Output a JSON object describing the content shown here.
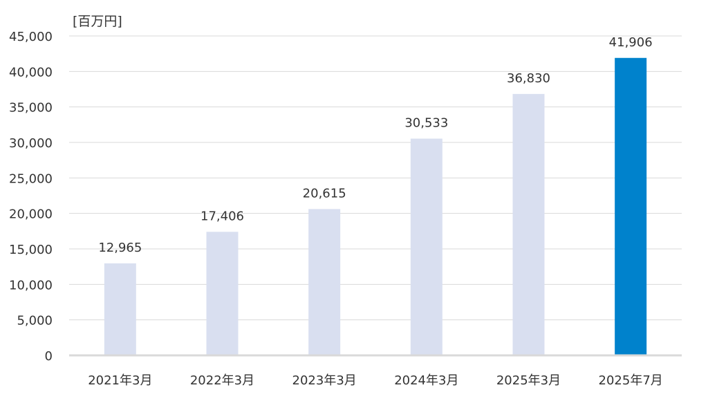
{
  "chart_data": {
    "type": "bar",
    "unit_label": "[百万円]",
    "categories": [
      "2021年3月",
      "2022年3月",
      "2023年3月",
      "2024年3月",
      "2025年3月",
      "2025年7月"
    ],
    "values": [
      12965,
      17406,
      20615,
      30533,
      36830,
      41906
    ],
    "value_labels": [
      "12,965",
      "17,406",
      "20,615",
      "30,533",
      "36,830",
      "41,906"
    ],
    "ylim": [
      0,
      45000
    ],
    "yticks": [
      0,
      5000,
      10000,
      15000,
      20000,
      25000,
      30000,
      35000,
      40000,
      45000
    ],
    "ytick_labels": [
      "0",
      "5,000",
      "10,000",
      "15,000",
      "20,000",
      "25,000",
      "30,000",
      "35,000",
      "40,000",
      "45,000"
    ],
    "grid": true,
    "legend": "none",
    "colors": {
      "bar_default": "#d9dff0",
      "bar_highlight": "#0082cc",
      "grid": "#d9d9d9",
      "axis": "#d9d9d9",
      "text": "#333333"
    },
    "highlight_index": 5
  }
}
